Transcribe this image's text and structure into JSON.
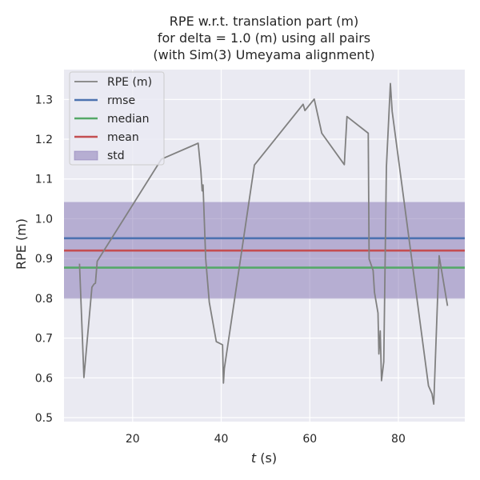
{
  "chart_data": {
    "type": "line",
    "title": [
      "RPE w.r.t. translation part (m)",
      "for delta = 1.0 (m) using all pairs",
      "(with Sim(3) Umeyama alignment)"
    ],
    "xlabel_var": "t",
    "xlabel_unit": " (s)",
    "ylabel": "RPE (m)",
    "xlim": [
      4.5,
      95
    ],
    "ylim": [
      0.49,
      1.375
    ],
    "xticks": [
      20,
      40,
      60,
      80
    ],
    "yticks": [
      0.5,
      0.6,
      0.7,
      0.8,
      0.9,
      1.0,
      1.1,
      1.2,
      1.3
    ],
    "ytick_labels": [
      "0.5",
      "0.6",
      "0.7",
      "0.8",
      "0.9",
      "1.0",
      "1.1",
      "1.2",
      "1.3"
    ],
    "grid": true,
    "legend_position": "top-left",
    "series": [
      {
        "name": "RPE (m)",
        "color": "#808080",
        "x": [
          8.0,
          9.0,
          10.8,
          11.3,
          11.6,
          12.0,
          26.5,
          34.8,
          35.4,
          35.7,
          35.9,
          36.5,
          37.3,
          38.9,
          40.3,
          40.5,
          40.7,
          47.5,
          58.5,
          58.9,
          61.0,
          62.7,
          67.8,
          68.4,
          73.2,
          73.4,
          74.3,
          74.6,
          75.4,
          75.6,
          75.9,
          76.2,
          76.7,
          77.3,
          78.2,
          78.6,
          86.8,
          87.6,
          88.0,
          89.2,
          91.1
        ],
        "y": [
          0.887,
          0.601,
          0.828,
          0.836,
          0.838,
          0.893,
          1.15,
          1.19,
          1.12,
          1.07,
          1.085,
          0.9,
          0.79,
          0.691,
          0.683,
          0.587,
          0.623,
          1.135,
          1.288,
          1.272,
          1.301,
          1.215,
          1.136,
          1.257,
          1.215,
          0.899,
          0.87,
          0.815,
          0.763,
          0.66,
          0.718,
          0.593,
          0.64,
          1.13,
          1.34,
          1.27,
          0.58,
          0.56,
          0.534,
          0.907,
          0.781
        ]
      },
      {
        "name": "rmse",
        "color": "#4c72b0",
        "value": 0.951
      },
      {
        "name": "median",
        "color": "#55a868",
        "value": 0.877
      },
      {
        "name": "mean",
        "color": "#c44e52",
        "value": 0.92
      },
      {
        "name": "std",
        "color": "#8172b2",
        "range": [
          0.799,
          1.042
        ]
      }
    ]
  }
}
